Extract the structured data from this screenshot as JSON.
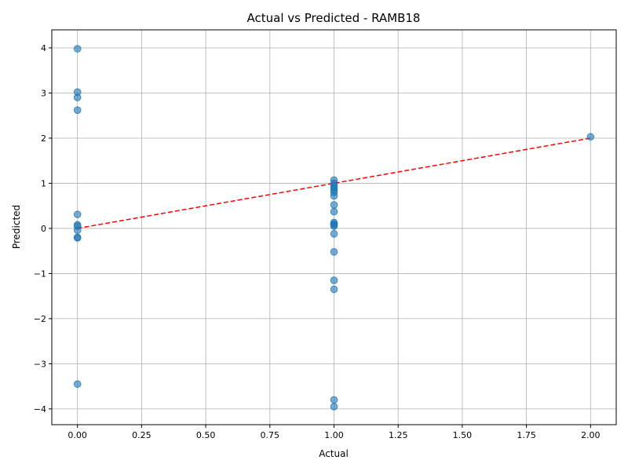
{
  "chart_data": {
    "type": "scatter",
    "title": "Actual vs Predicted - RAMB18",
    "xlabel": "Actual",
    "ylabel": "Predicted",
    "xlim": [
      -0.1,
      2.1
    ],
    "ylim": [
      -4.35,
      4.4
    ],
    "x_ticks": [
      0.0,
      0.25,
      0.5,
      0.75,
      1.0,
      1.25,
      1.5,
      1.75,
      2.0
    ],
    "x_tick_labels": [
      "0.00",
      "0.25",
      "0.50",
      "0.75",
      "1.00",
      "1.25",
      "1.50",
      "1.75",
      "2.00"
    ],
    "y_ticks": [
      -4,
      -3,
      -2,
      -1,
      0,
      1,
      2,
      3,
      4
    ],
    "y_tick_labels": [
      "−4",
      "−3",
      "−2",
      "−1",
      "0",
      "1",
      "2",
      "3",
      "4"
    ],
    "grid": true,
    "reference_line": {
      "x": [
        0,
        2
      ],
      "y": [
        0,
        2
      ],
      "color": "#ff0000",
      "style": "dashed"
    },
    "points": {
      "color": "#1f77b4",
      "x": [
        0,
        0,
        0,
        0,
        0,
        0,
        0,
        0,
        0,
        0,
        0,
        1,
        1,
        1,
        1,
        1,
        1,
        1,
        1,
        1,
        1,
        1,
        1,
        1,
        1,
        1,
        1,
        1,
        1,
        1,
        2
      ],
      "y": [
        3.98,
        3.02,
        2.9,
        2.62,
        0.31,
        0.08,
        0.05,
        -0.04,
        -0.2,
        -0.21,
        -3.45,
        1.07,
        1.0,
        0.95,
        0.9,
        0.85,
        0.8,
        0.72,
        0.52,
        0.37,
        0.13,
        0.1,
        0.08,
        0.05,
        -0.12,
        -0.52,
        -1.15,
        -1.35,
        -3.8,
        -3.95,
        2.03
      ]
    }
  }
}
